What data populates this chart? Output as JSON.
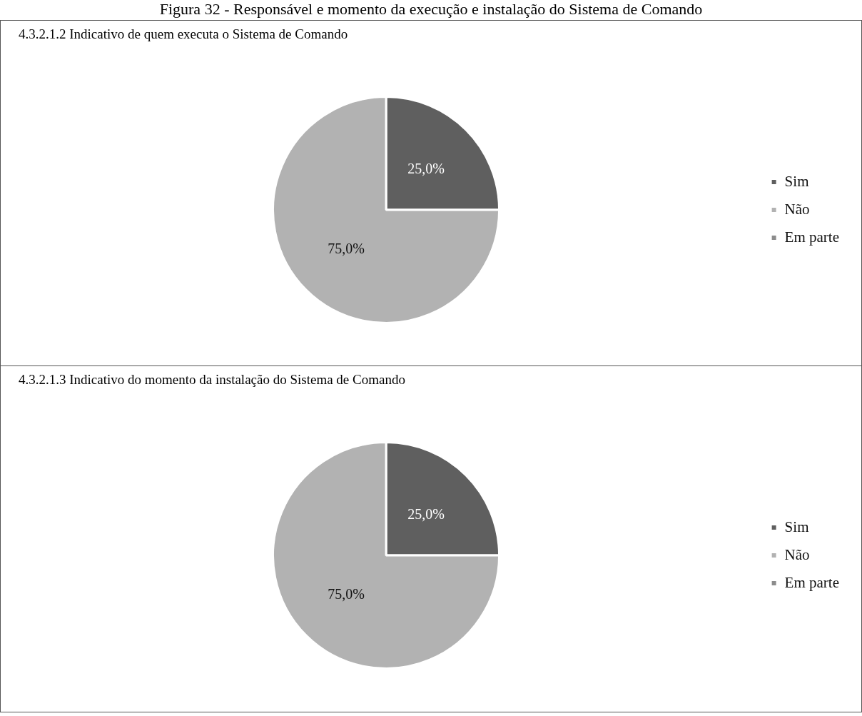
{
  "chart_data": [
    {
      "type": "pie",
      "title": "4.3.2.1.2 Indicativo de quem executa o Sistema de Comando",
      "annotations": [
        "Figura 32 - Responsável e momento da execução e instalação do Sistema de Comando"
      ],
      "categories": [
        "Sim",
        "Não",
        "Em parte"
      ],
      "values": [
        25,
        75,
        0
      ],
      "value_labels": [
        "25,0%",
        "75,0%",
        null
      ],
      "colors": [
        "#5f5f5f",
        "#b2b2b2",
        "#8c8c8c"
      ],
      "legend": "right"
    },
    {
      "type": "pie",
      "title": "4.3.2.1.3 Indicativo do momento da instalação do Sistema de Comando",
      "categories": [
        "Sim",
        "Não",
        "Em parte"
      ],
      "values": [
        25,
        75,
        0
      ],
      "value_labels": [
        "25,0%",
        "75,0%",
        null
      ],
      "colors": [
        "#5f5f5f",
        "#b2b2b2",
        "#8c8c8c"
      ],
      "legend": "right"
    }
  ]
}
